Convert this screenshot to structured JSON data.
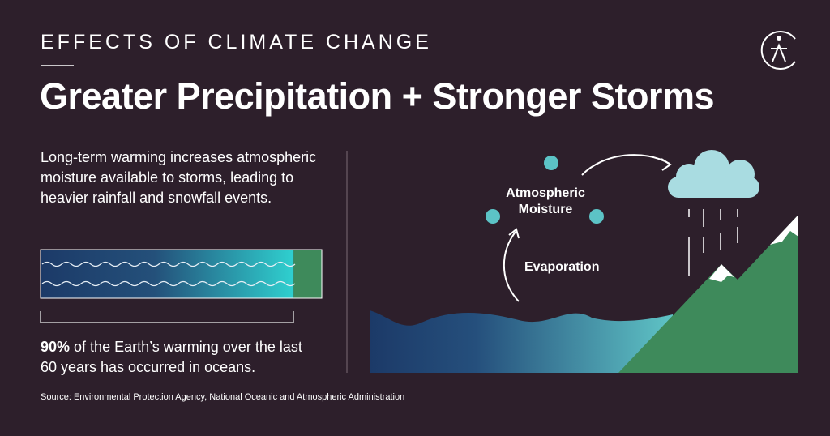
{
  "header": {
    "kicker": "EFFECTS OF CLIMATE CHANGE",
    "title": "Greater Precipitation + Stronger Storms"
  },
  "description": "Long-term warming increases atmospheric moisture available to storms, leading to heavier rainfall and snowfall events.",
  "stat": {
    "value": 90,
    "label": "90%",
    "text": "of the Earth’s warming over the last 60 years has occurred in oceans."
  },
  "diagram": {
    "moisture_label": "Atmospheric Moisture",
    "evaporation_label": "Evaporation"
  },
  "source": "Source:  Environmental Protection Agency, National Oceanic and Atmospheric Administration"
}
